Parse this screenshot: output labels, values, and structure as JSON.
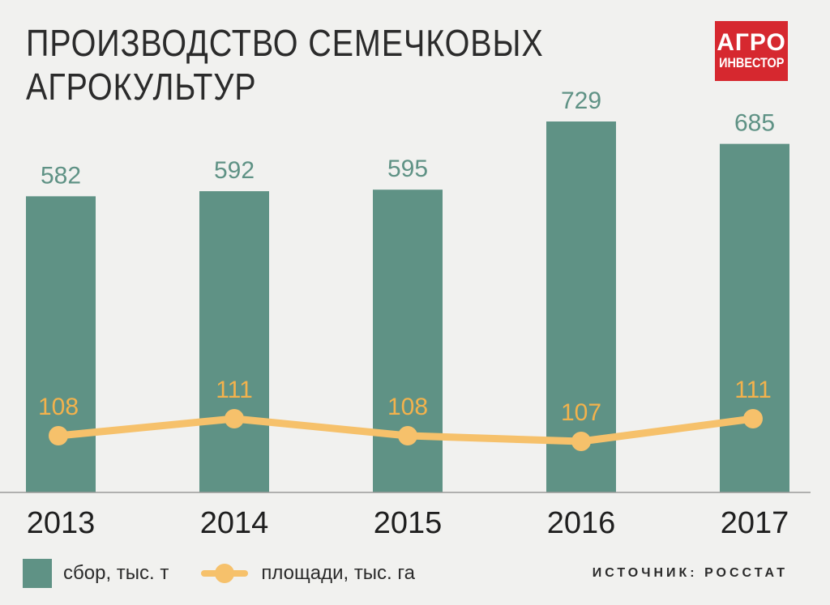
{
  "title_lines": [
    "ПРОИЗВОДСТВО СЕМЕЧКОВЫХ",
    "АГРОКУЛЬТУР"
  ],
  "logo": {
    "line1": "АГРО",
    "line2": "ИНВЕСТОР"
  },
  "source": "ИСТОЧНИК: РОССТАТ",
  "colors": {
    "bar": "#5f9285",
    "line": "#f6c16b",
    "bar_label": "#5f9285",
    "line_label": "#f3b24c"
  },
  "chart_data": {
    "type": "bar",
    "categories": [
      "2013",
      "2014",
      "2015",
      "2016",
      "2017"
    ],
    "series": [
      {
        "name": "сбор, тыс. т",
        "type": "bar",
        "values": [
          582,
          592,
          595,
          729,
          685
        ]
      },
      {
        "name": "площади, тыс. га",
        "type": "line",
        "values": [
          108,
          111,
          108,
          107,
          111
        ]
      }
    ],
    "title": "ПРОИЗВОДСТВО СЕМЕЧКОВЫХ АГРОКУЛЬТУР",
    "legend_position": "bottom-left",
    "grid": false
  }
}
